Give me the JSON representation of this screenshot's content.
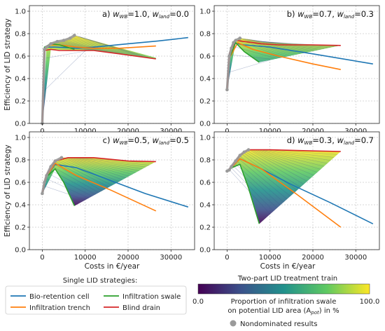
{
  "chart_data": {
    "type": "line",
    "ylabel": "Efficiency of LID strategy",
    "xlabel": "Costs in €/year",
    "xlim": [
      -3000,
      35500
    ],
    "ylim": [
      0,
      1.05
    ],
    "xticks": [
      0,
      10000,
      20000,
      30000
    ],
    "xtick_labels": [
      "0",
      "10000",
      "20000",
      "30000"
    ],
    "yticks": [
      0,
      0.2,
      0.4,
      0.6,
      0.8,
      1.0
    ],
    "ytick_labels": [
      "0.0",
      "0.2",
      "0.4",
      "0.6",
      "0.8",
      "1.0"
    ],
    "grid": true,
    "colors": {
      "bio": "#1f77b4",
      "trench": "#ff7f0e",
      "swale": "#2ca02c",
      "blind": "#d62728",
      "nondominated": "#9a9a9a"
    },
    "legend": {
      "single_title": "Single LID strategies:",
      "items": [
        {
          "key": "bio",
          "label": "Bio-retention cell"
        },
        {
          "key": "trench",
          "label": "Infiltration trench"
        },
        {
          "key": "swale",
          "label": "Infiltration swale"
        },
        {
          "key": "blind",
          "label": "Blind drain"
        }
      ],
      "train_title": "Two-part LID treatment train",
      "cbar_min": "0.0",
      "cbar_max": "100.0",
      "cbar_label_1": "Proportion of infiltration swale",
      "cbar_label_2": "on potential LID area (A",
      "cbar_label_sub": "pot",
      "cbar_label_3": ") in %",
      "nondominated_label": "Nondominated results"
    },
    "panels": [
      {
        "label": "a)",
        "wwb": "1.0",
        "wland": "0.0",
        "bio": [
          [
            0,
            0
          ],
          [
            500,
            0.66
          ],
          [
            1000,
            0.68
          ],
          [
            3000,
            0.68
          ],
          [
            8000,
            0.67
          ],
          [
            12000,
            0.68
          ],
          [
            20000,
            0.71
          ],
          [
            27000,
            0.735
          ],
          [
            34000,
            0.765
          ]
        ],
        "trench": [
          [
            0,
            0
          ],
          [
            500,
            0.66
          ],
          [
            2000,
            0.7
          ],
          [
            4000,
            0.7
          ],
          [
            8000,
            0.68
          ],
          [
            12000,
            0.67
          ],
          [
            18000,
            0.67
          ],
          [
            26500,
            0.69
          ]
        ],
        "swale": [
          [
            0,
            0
          ],
          [
            500,
            0.68
          ],
          [
            2000,
            0.71
          ],
          [
            4000,
            0.7
          ],
          [
            7500,
            0.66
          ]
        ],
        "blind": [
          [
            0,
            0
          ],
          [
            500,
            0.65
          ],
          [
            2000,
            0.66
          ],
          [
            4000,
            0.65
          ],
          [
            8000,
            0.65
          ],
          [
            12000,
            0.65
          ],
          [
            18000,
            0.62
          ],
          [
            26500,
            0.575
          ]
        ],
        "fan_top": [
          [
            0,
            0
          ],
          [
            1000,
            0.69
          ],
          [
            2000,
            0.72
          ],
          [
            3500,
            0.73
          ],
          [
            5000,
            0.74
          ],
          [
            7500,
            0.785
          ],
          [
            26500,
            0.585
          ]
        ],
        "fan_bottom": [
          [
            0,
            0
          ],
          [
            2000,
            0.66
          ],
          [
            8000,
            0.65
          ],
          [
            12000,
            0.65
          ],
          [
            18000,
            0.62
          ],
          [
            26500,
            0.575
          ]
        ],
        "nondom": [
          [
            0,
            0
          ],
          [
            500,
            0.66
          ],
          [
            1000,
            0.68
          ],
          [
            2000,
            0.71
          ],
          [
            3500,
            0.73
          ],
          [
            5000,
            0.74
          ],
          [
            6500,
            0.76
          ],
          [
            7500,
            0.785
          ]
        ]
      },
      {
        "label": "b)",
        "wwb": "0.7",
        "wland": "0.3",
        "bio": [
          [
            0,
            0.3
          ],
          [
            500,
            0.6
          ],
          [
            1500,
            0.72
          ],
          [
            4000,
            0.7
          ],
          [
            10000,
            0.68
          ],
          [
            20000,
            0.62
          ],
          [
            34000,
            0.53
          ]
        ],
        "trench": [
          [
            0,
            0.3
          ],
          [
            500,
            0.58
          ],
          [
            2500,
            0.72
          ],
          [
            6000,
            0.66
          ],
          [
            12000,
            0.6
          ],
          [
            20000,
            0.53
          ],
          [
            26500,
            0.48
          ]
        ],
        "swale": [
          [
            0,
            0.3
          ],
          [
            500,
            0.58
          ],
          [
            2000,
            0.72
          ],
          [
            4000,
            0.64
          ],
          [
            7500,
            0.545
          ]
        ],
        "blind": [
          [
            0,
            0.3
          ],
          [
            500,
            0.62
          ],
          [
            2000,
            0.74
          ],
          [
            4000,
            0.73
          ],
          [
            8000,
            0.71
          ],
          [
            12000,
            0.7
          ],
          [
            20000,
            0.7
          ],
          [
            26500,
            0.695
          ]
        ],
        "fan_top": [
          [
            0,
            0.3
          ],
          [
            1000,
            0.67
          ],
          [
            2000,
            0.74
          ],
          [
            3000,
            0.76
          ],
          [
            5000,
            0.75
          ],
          [
            8000,
            0.73
          ],
          [
            15000,
            0.71
          ],
          [
            26500,
            0.695
          ]
        ],
        "fan_bottom": [
          [
            0,
            0.3
          ],
          [
            2000,
            0.72
          ],
          [
            4000,
            0.64
          ],
          [
            7500,
            0.545
          ],
          [
            26500,
            0.695
          ]
        ],
        "nondom": [
          [
            0,
            0.3
          ],
          [
            500,
            0.6
          ],
          [
            1000,
            0.67
          ],
          [
            1500,
            0.72
          ],
          [
            2000,
            0.74
          ],
          [
            3000,
            0.76
          ]
        ]
      },
      {
        "label": "c)",
        "wwb": "0.5",
        "wland": "0.5",
        "bio": [
          [
            0,
            0.5
          ],
          [
            1000,
            0.65
          ],
          [
            3000,
            0.76
          ],
          [
            8000,
            0.73
          ],
          [
            15000,
            0.63
          ],
          [
            24000,
            0.5
          ],
          [
            34000,
            0.38
          ]
        ],
        "trench": [
          [
            0,
            0.5
          ],
          [
            1000,
            0.65
          ],
          [
            3000,
            0.77
          ],
          [
            8000,
            0.66
          ],
          [
            16000,
            0.53
          ],
          [
            26500,
            0.345
          ]
        ],
        "swale": [
          [
            0,
            0.5
          ],
          [
            1000,
            0.65
          ],
          [
            3000,
            0.72
          ],
          [
            5000,
            0.6
          ],
          [
            7500,
            0.39
          ]
        ],
        "blind": [
          [
            0,
            0.5
          ],
          [
            1000,
            0.67
          ],
          [
            3000,
            0.79
          ],
          [
            6000,
            0.82
          ],
          [
            12000,
            0.82
          ],
          [
            20000,
            0.79
          ],
          [
            26500,
            0.785
          ]
        ],
        "fan_top": [
          [
            0,
            0.5
          ],
          [
            1000,
            0.66
          ],
          [
            2000,
            0.74
          ],
          [
            3000,
            0.79
          ],
          [
            4500,
            0.82
          ],
          [
            12000,
            0.82
          ],
          [
            20000,
            0.79
          ],
          [
            26500,
            0.785
          ]
        ],
        "fan_bottom": [
          [
            0,
            0.5
          ],
          [
            3000,
            0.72
          ],
          [
            5000,
            0.6
          ],
          [
            7500,
            0.39
          ],
          [
            26500,
            0.785
          ]
        ],
        "nondom": [
          [
            0,
            0.5
          ],
          [
            500,
            0.6
          ],
          [
            1000,
            0.66
          ],
          [
            2000,
            0.74
          ],
          [
            3000,
            0.79
          ],
          [
            4500,
            0.82
          ]
        ]
      },
      {
        "label": "d)",
        "wwb": "0.3",
        "wland": "0.7",
        "bio": [
          [
            0,
            0.7
          ],
          [
            1000,
            0.73
          ],
          [
            3000,
            0.81
          ],
          [
            8000,
            0.72
          ],
          [
            15000,
            0.58
          ],
          [
            24000,
            0.42
          ],
          [
            34000,
            0.23
          ]
        ],
        "trench": [
          [
            0,
            0.7
          ],
          [
            1000,
            0.73
          ],
          [
            3000,
            0.81
          ],
          [
            8000,
            0.72
          ],
          [
            16000,
            0.5
          ],
          [
            26500,
            0.2
          ]
        ],
        "swale": [
          [
            0,
            0.7
          ],
          [
            1000,
            0.73
          ],
          [
            3000,
            0.76
          ],
          [
            5000,
            0.55
          ],
          [
            7500,
            0.23
          ]
        ],
        "blind": [
          [
            0,
            0.7
          ],
          [
            1000,
            0.74
          ],
          [
            3000,
            0.84
          ],
          [
            5000,
            0.89
          ],
          [
            10000,
            0.89
          ],
          [
            20000,
            0.88
          ],
          [
            26500,
            0.875
          ]
        ],
        "fan_top": [
          [
            0,
            0.7
          ],
          [
            1000,
            0.74
          ],
          [
            2000,
            0.79
          ],
          [
            3500,
            0.86
          ],
          [
            5000,
            0.89
          ],
          [
            10000,
            0.89
          ],
          [
            20000,
            0.88
          ],
          [
            26500,
            0.875
          ]
        ],
        "fan_bottom": [
          [
            0,
            0.7
          ],
          [
            3000,
            0.76
          ],
          [
            5000,
            0.55
          ],
          [
            7500,
            0.23
          ],
          [
            26500,
            0.875
          ]
        ],
        "nondom": [
          [
            0,
            0.7
          ],
          [
            500,
            0.71
          ],
          [
            1000,
            0.74
          ],
          [
            2000,
            0.79
          ],
          [
            3000,
            0.84
          ],
          [
            4000,
            0.87
          ],
          [
            5000,
            0.89
          ]
        ]
      }
    ]
  }
}
